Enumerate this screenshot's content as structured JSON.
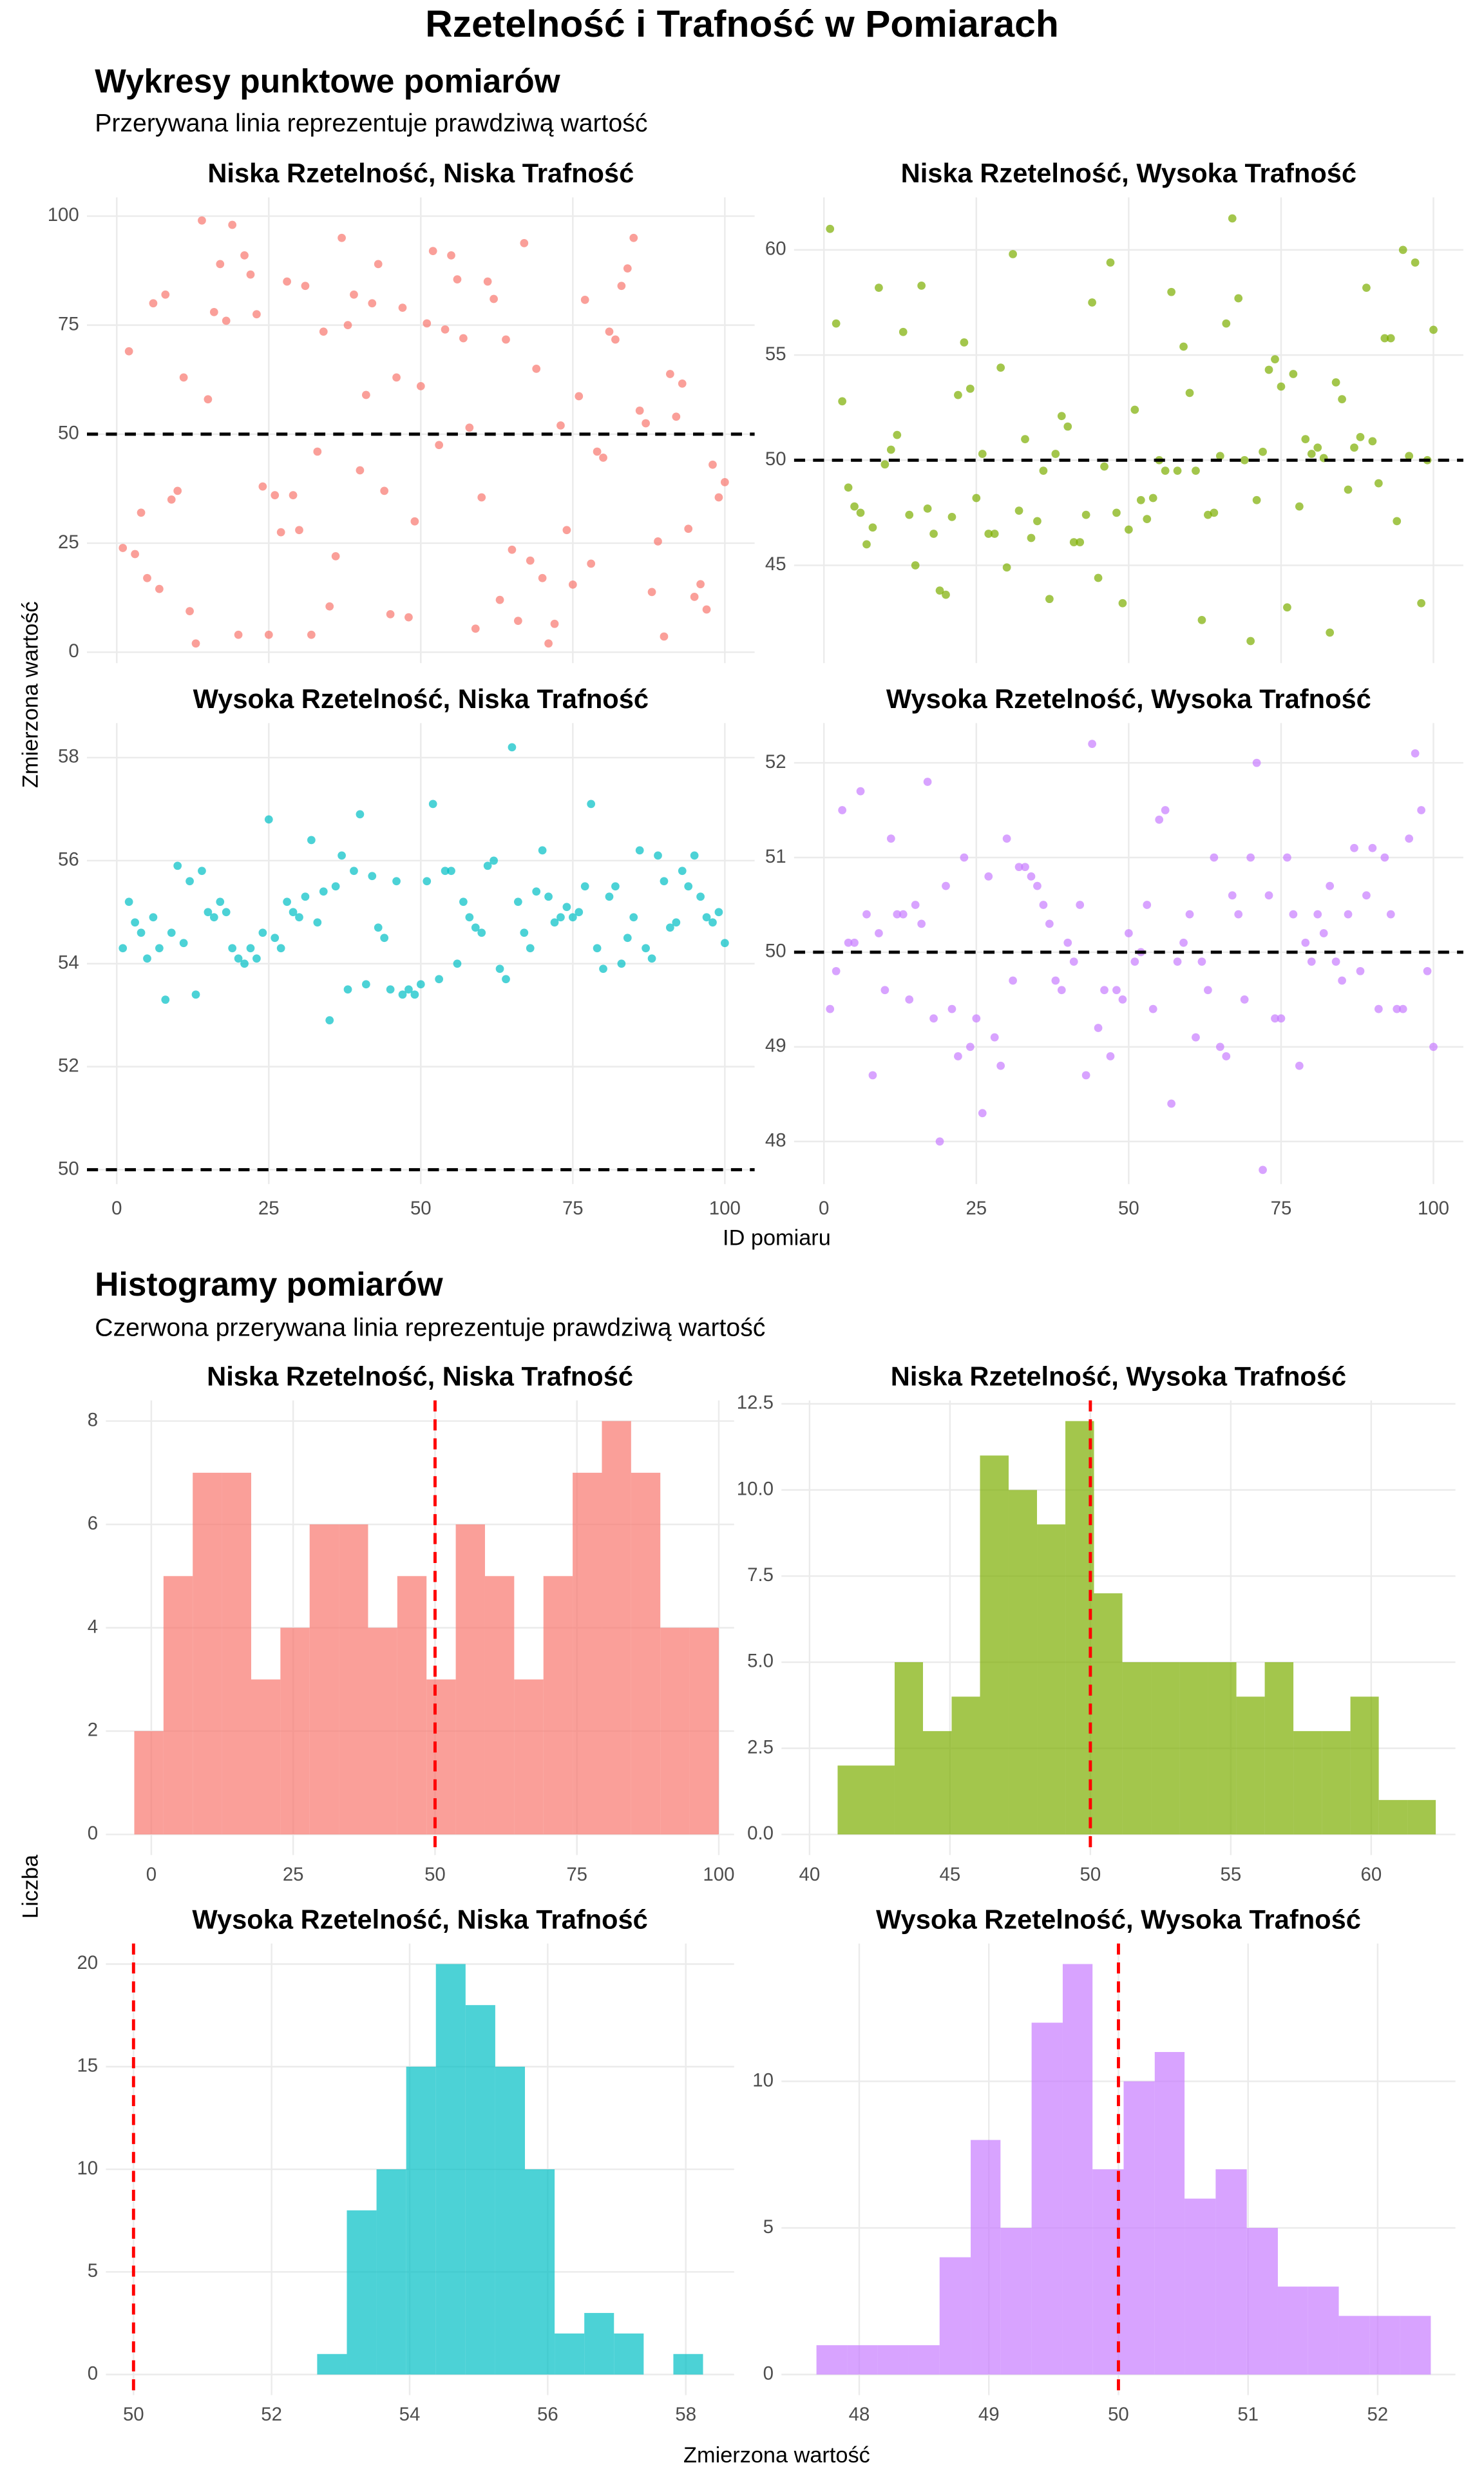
{
  "title": "Rzetelność i Trafność w Pomiarach",
  "sections": [
    {
      "title": "Wykresy punktowe pomiarów",
      "subtitle": "Przerywana linia reprezentuje prawdziwą wartość",
      "xlabel": "ID pomiaru",
      "ylabel": "Zmierzona wartość"
    },
    {
      "title": "Histogramy pomiarów",
      "subtitle": "Czerwona przerywana linia reprezentuje prawdziwą wartość",
      "xlabel": "Zmierzona wartość",
      "ylabel": "Liczba"
    }
  ],
  "chart_data": [
    {
      "type": "scatter",
      "title": "Niska Rzetelność, Niska Trafność",
      "color": "#F8766D",
      "line_color": "#000000",
      "hline": 50,
      "xtick_labels": false,
      "x": [
        1,
        2,
        3,
        4,
        5,
        6,
        7,
        8,
        9,
        10,
        11,
        12,
        13,
        14,
        15,
        16,
        17,
        18,
        19,
        20,
        21,
        22,
        23,
        24,
        25,
        26,
        27,
        28,
        29,
        30,
        31,
        32,
        33,
        34,
        35,
        36,
        37,
        38,
        39,
        40,
        41,
        42,
        43,
        44,
        45,
        46,
        47,
        48,
        49,
        50,
        51,
        52,
        53,
        54,
        55,
        56,
        57,
        58,
        59,
        60,
        61,
        62,
        63,
        64,
        65,
        66,
        67,
        68,
        69,
        70,
        71,
        72,
        73,
        74,
        75,
        76,
        77,
        78,
        79,
        80,
        81,
        82,
        83,
        84,
        85,
        86,
        87,
        88,
        89,
        90,
        91,
        92,
        93,
        94,
        95,
        96,
        97,
        98,
        99,
        100
      ],
      "values": [
        23.9,
        69,
        22.5,
        32,
        17,
        80,
        14.5,
        82,
        35,
        37,
        63,
        9.4,
        2,
        99,
        58,
        78,
        89,
        76,
        98,
        4,
        91,
        86.6,
        77.5,
        38,
        4,
        36,
        27.5,
        85,
        36,
        28,
        84,
        4,
        46,
        73.5,
        10.5,
        22,
        95,
        75,
        82,
        41.7,
        59,
        80,
        89,
        37,
        8.7,
        63,
        79,
        8,
        30,
        61,
        75.4,
        92,
        47.5,
        74,
        91,
        85.5,
        72,
        51.5,
        5.4,
        35.5,
        85,
        81,
        12,
        71.7,
        23.5,
        7.2,
        93.8,
        21,
        65,
        17,
        2,
        6.5,
        52,
        28,
        15.5,
        58.7,
        80.8,
        20.3,
        46,
        44.6,
        73.5,
        71.7,
        84,
        88,
        95,
        55.4,
        52.5,
        13.8,
        25.4,
        3.6,
        63.8,
        54,
        61.6,
        28.3,
        12.7,
        15.6,
        9.8,
        43,
        35.5,
        39
      ],
      "xlim": [
        -4.9,
        104.9
      ],
      "ylim": [
        -2.5,
        104.3
      ],
      "xticks": [
        0,
        25,
        50,
        75,
        100
      ],
      "yticks": [
        0,
        25,
        50,
        75,
        100
      ]
    },
    {
      "type": "scatter",
      "title": "Niska Rzetelność, Wysoka Trafność",
      "color": "#7CAE00",
      "line_color": "#000000",
      "hline": 50,
      "xtick_labels": false,
      "x": [
        1,
        2,
        3,
        4,
        5,
        6,
        7,
        8,
        9,
        10,
        11,
        12,
        13,
        14,
        15,
        16,
        17,
        18,
        19,
        20,
        21,
        22,
        23,
        24,
        25,
        26,
        27,
        28,
        29,
        30,
        31,
        32,
        33,
        34,
        35,
        36,
        37,
        38,
        39,
        40,
        41,
        42,
        43,
        44,
        45,
        46,
        47,
        48,
        49,
        50,
        51,
        52,
        53,
        54,
        55,
        56,
        57,
        58,
        59,
        60,
        61,
        62,
        63,
        64,
        65,
        66,
        67,
        68,
        69,
        70,
        71,
        72,
        73,
        74,
        75,
        76,
        77,
        78,
        79,
        80,
        81,
        82,
        83,
        84,
        85,
        86,
        87,
        88,
        89,
        90,
        91,
        92,
        93,
        94,
        95,
        96,
        97,
        98,
        99,
        100
      ],
      "values": [
        61,
        56.5,
        52.8,
        48.7,
        47.8,
        47.5,
        46,
        46.8,
        58.2,
        49.8,
        50.5,
        51.2,
        56.1,
        47.4,
        45,
        58.3,
        47.7,
        46.5,
        43.8,
        43.6,
        47.3,
        53.1,
        55.6,
        53.4,
        48.2,
        50.3,
        46.5,
        46.5,
        54.4,
        44.9,
        59.8,
        47.6,
        51,
        46.3,
        47.1,
        49.5,
        43.4,
        50.3,
        52.1,
        51.6,
        46.1,
        46.1,
        47.4,
        57.5,
        44.4,
        49.7,
        59.4,
        47.5,
        43.2,
        46.7,
        52.4,
        48.1,
        47.2,
        48.2,
        50,
        49.5,
        58,
        49.5,
        55.4,
        53.2,
        49.5,
        42.4,
        47.4,
        47.5,
        50.2,
        56.5,
        61.5,
        57.7,
        50,
        41.4,
        48.1,
        50.4,
        54.3,
        54.8,
        53.5,
        43,
        54.1,
        47.8,
        51,
        50.3,
        50.6,
        50.1,
        41.8,
        53.7,
        52.9,
        48.6,
        50.6,
        51.1,
        58.2,
        50.9,
        48.9,
        55.8,
        55.8,
        47.1,
        60,
        50.2,
        59.4,
        43.2,
        50,
        56.2
      ],
      "xlim": [
        -4.9,
        104.9
      ],
      "ylim": [
        40.35,
        62.5
      ],
      "xticks": [
        0,
        25,
        50,
        75,
        100
      ],
      "yticks": [
        45,
        50,
        55,
        60
      ]
    },
    {
      "type": "scatter",
      "title": "Wysoka Rzetelność, Niska Trafność",
      "color": "#00BFC4",
      "line_color": "#000000",
      "hline": 50,
      "x": [
        1,
        2,
        3,
        4,
        5,
        6,
        7,
        8,
        9,
        10,
        11,
        12,
        13,
        14,
        15,
        16,
        17,
        18,
        19,
        20,
        21,
        22,
        23,
        24,
        25,
        26,
        27,
        28,
        29,
        30,
        31,
        32,
        33,
        34,
        35,
        36,
        37,
        38,
        39,
        40,
        41,
        42,
        43,
        44,
        45,
        46,
        47,
        48,
        49,
        50,
        51,
        52,
        53,
        54,
        55,
        56,
        57,
        58,
        59,
        60,
        61,
        62,
        63,
        64,
        65,
        66,
        67,
        68,
        69,
        70,
        71,
        72,
        73,
        74,
        75,
        76,
        77,
        78,
        79,
        80,
        81,
        82,
        83,
        84,
        85,
        86,
        87,
        88,
        89,
        90,
        91,
        92,
        93,
        94,
        95,
        96,
        97,
        98,
        99,
        100
      ],
      "values": [
        54.3,
        55.2,
        54.8,
        54.6,
        54.1,
        54.9,
        54.3,
        53.3,
        54.6,
        55.9,
        54.4,
        55.6,
        53.4,
        55.8,
        55,
        54.9,
        55.2,
        55,
        54.3,
        54.1,
        54,
        54.3,
        54.1,
        54.6,
        56.8,
        54.5,
        54.3,
        55.2,
        55,
        54.9,
        55.3,
        56.4,
        54.8,
        55.4,
        52.9,
        55.5,
        56.1,
        53.5,
        55.8,
        56.9,
        53.6,
        55.7,
        54.7,
        54.5,
        53.5,
        55.6,
        53.4,
        53.5,
        53.4,
        53.6,
        55.6,
        57.1,
        53.7,
        55.8,
        55.8,
        54,
        55.2,
        54.9,
        54.7,
        54.6,
        55.9,
        56,
        53.9,
        53.7,
        58.2,
        55.2,
        54.6,
        54.3,
        55.4,
        56.2,
        55.3,
        54.8,
        54.9,
        55.1,
        54.9,
        55,
        55.5,
        57.1,
        54.3,
        53.9,
        55.3,
        55.5,
        54,
        54.5,
        54.9,
        56.2,
        54.3,
        54.1,
        56.1,
        55.6,
        54.7,
        54.8,
        55.8,
        55.5,
        56.1,
        55.3,
        54.9,
        54.8,
        55,
        54.4
      ],
      "xlim": [
        -4.9,
        104.9
      ],
      "ylim": [
        49.72,
        58.67
      ],
      "xticks": [
        0,
        25,
        50,
        75,
        100
      ],
      "yticks": [
        50,
        52,
        54,
        56,
        58
      ]
    },
    {
      "type": "scatter",
      "title": "Wysoka Rzetelność, Wysoka Trafność",
      "color": "#C77CFF",
      "line_color": "#000000",
      "hline": 50,
      "x": [
        1,
        2,
        3,
        4,
        5,
        6,
        7,
        8,
        9,
        10,
        11,
        12,
        13,
        14,
        15,
        16,
        17,
        18,
        19,
        20,
        21,
        22,
        23,
        24,
        25,
        26,
        27,
        28,
        29,
        30,
        31,
        32,
        33,
        34,
        35,
        36,
        37,
        38,
        39,
        40,
        41,
        42,
        43,
        44,
        45,
        46,
        47,
        48,
        49,
        50,
        51,
        52,
        53,
        54,
        55,
        56,
        57,
        58,
        59,
        60,
        61,
        62,
        63,
        64,
        65,
        66,
        67,
        68,
        69,
        70,
        71,
        72,
        73,
        74,
        75,
        76,
        77,
        78,
        79,
        80,
        81,
        82,
        83,
        84,
        85,
        86,
        87,
        88,
        89,
        90,
        91,
        92,
        93,
        94,
        95,
        96,
        97,
        98,
        99,
        100
      ],
      "values": [
        49.4,
        49.8,
        51.5,
        50.1,
        50.1,
        51.7,
        50.4,
        48.7,
        50.2,
        49.6,
        51.2,
        50.4,
        50.4,
        49.5,
        50.5,
        50.3,
        51.8,
        49.3,
        48,
        50.7,
        49.4,
        48.9,
        51,
        49,
        49.3,
        48.3,
        50.8,
        49.1,
        48.8,
        51.2,
        49.7,
        50.9,
        50.9,
        50.8,
        50.7,
        50.5,
        50.3,
        49.7,
        49.6,
        50.1,
        49.9,
        50.5,
        48.7,
        52.2,
        49.2,
        49.6,
        48.9,
        49.6,
        49.5,
        50.2,
        49.9,
        50,
        50.5,
        49.4,
        51.4,
        51.5,
        48.4,
        49.9,
        50.1,
        50.4,
        49.1,
        49.9,
        49.6,
        51,
        49,
        48.9,
        50.6,
        50.4,
        49.5,
        51,
        52,
        47.7,
        50.6,
        49.3,
        49.3,
        51,
        50.4,
        48.8,
        50.1,
        49.9,
        50.4,
        50.2,
        50.7,
        49.9,
        49.7,
        50.4,
        51.1,
        49.8,
        50.6,
        51.1,
        49.4,
        51,
        50.4,
        49.4,
        49.4,
        51.2,
        52.1,
        51.5,
        49.8,
        49
      ],
      "xlim": [
        -4.9,
        104.9
      ],
      "ylim": [
        47.55,
        52.42
      ],
      "xticks": [
        0,
        25,
        50,
        75,
        100
      ],
      "yticks": [
        48,
        49,
        50,
        51,
        52
      ]
    },
    {
      "type": "histogram",
      "title": "Niska Rzetelność, Niska Trafność",
      "color": "#F8766D",
      "line_color": "#FF0000",
      "vline": 50,
      "bins": [
        -3,
        2.15,
        7.3,
        12.45,
        17.6,
        22.75,
        27.9,
        33.05,
        38.2,
        43.35,
        48.5,
        53.65,
        58.8,
        63.95,
        69.1,
        74.25,
        79.4,
        84.55,
        89.7,
        94.85,
        100
      ],
      "values": [
        2,
        5,
        7,
        7,
        3,
        4,
        6,
        6,
        4,
        5,
        3,
        6,
        5,
        3,
        5,
        7,
        8,
        7,
        4,
        4
      ],
      "xlim": [
        -8,
        102.7
      ],
      "ylim": [
        -0.4,
        8.4
      ],
      "xticks": [
        0,
        25,
        50,
        75,
        100
      ],
      "yticks": [
        0,
        2,
        4,
        6,
        8
      ]
    },
    {
      "type": "histogram",
      "title": "Niska Rzetelność, Wysoka Trafność",
      "color": "#7CAE00",
      "line_color": "#FF0000",
      "vline": 50,
      "bins": [
        41,
        42.01,
        43.03,
        44.04,
        45.06,
        46.07,
        47.09,
        48.1,
        49.11,
        50.13,
        51.14,
        52.16,
        53.17,
        54.19,
        55.2,
        56.21,
        57.23,
        58.24,
        59.26,
        60.27,
        61.29,
        62.3
      ],
      "values": [
        2,
        2,
        5,
        3,
        4,
        11,
        10,
        9,
        12,
        7,
        5,
        5,
        5,
        5,
        4,
        5,
        3,
        3,
        4,
        1,
        1
      ],
      "xlim": [
        39,
        63
      ],
      "ylim": [
        -0.6,
        12.6
      ],
      "xticks": [
        40,
        45,
        50,
        55,
        60
      ],
      "yticks": [
        {
          "value": 0,
          "label": "0.0"
        },
        {
          "value": 2.5,
          "label": "2.5"
        },
        {
          "value": 5,
          "label": "5.0"
        },
        {
          "value": 7.5,
          "label": "7.5"
        },
        {
          "value": 10,
          "label": "10.0"
        },
        {
          "value": 12.5,
          "label": "12.5"
        }
      ]
    },
    {
      "type": "histogram",
      "title": "Wysoka Rzetelność, Niska Trafność",
      "color": "#00BFC4",
      "line_color": "#FF0000",
      "vline": 50,
      "bins": [
        52.66,
        53.09,
        53.52,
        53.95,
        54.38,
        54.81,
        55.24,
        55.67,
        56.1,
        56.53,
        56.96,
        57.39,
        57.82,
        58.25
      ],
      "values": [
        1,
        8,
        10,
        15,
        20,
        18,
        15,
        10,
        2,
        3,
        2,
        0,
        1
      ],
      "xlim": [
        49.6,
        58.7
      ],
      "ylim": [
        -1,
        21
      ],
      "xticks": [
        50,
        52,
        54,
        56,
        58
      ],
      "yticks": [
        0,
        5,
        10,
        15,
        20
      ]
    },
    {
      "type": "histogram",
      "title": "Wysoka Rzetelność, Wysoka Trafność",
      "color": "#C77CFF",
      "line_color": "#FF0000",
      "vline": 50,
      "bins": [
        47.67,
        47.91,
        48.14,
        48.38,
        48.62,
        48.86,
        49.09,
        49.33,
        49.57,
        49.8,
        50.04,
        50.28,
        50.51,
        50.75,
        50.99,
        51.23,
        51.46,
        51.7,
        51.94,
        52.17,
        52.41
      ],
      "values": [
        1,
        1,
        1,
        1,
        4,
        8,
        5,
        12,
        14,
        7,
        10,
        11,
        6,
        7,
        5,
        3,
        3,
        2,
        2,
        2
      ],
      "xlim": [
        47.4,
        52.6
      ],
      "ylim": [
        -0.7,
        14.7
      ],
      "xticks": [
        48,
        49,
        50,
        51,
        52
      ],
      "yticks": [
        0,
        5,
        10
      ]
    }
  ]
}
